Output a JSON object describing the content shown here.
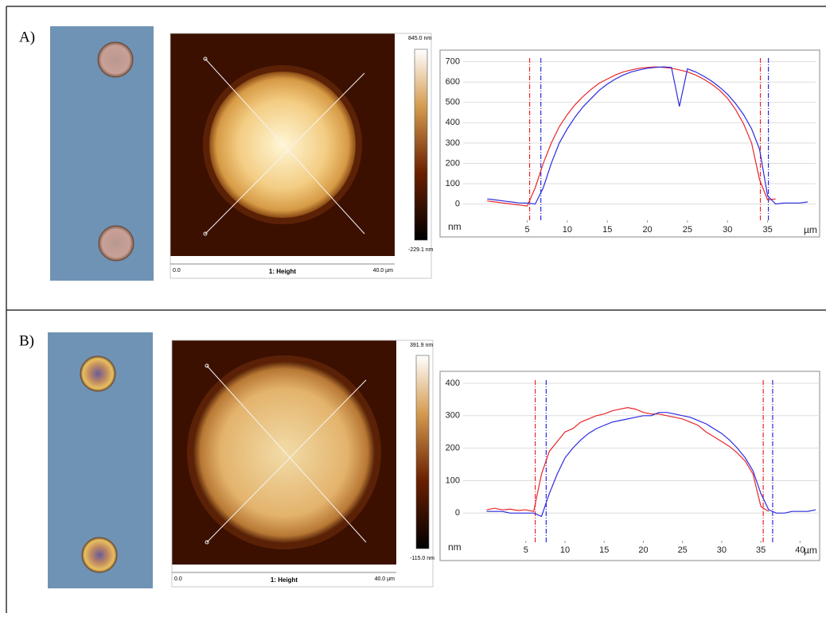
{
  "panels": [
    {
      "label": "A)",
      "afm": {
        "scale_max": "845.0 nm",
        "scale_min": "-229.1 nm",
        "axis_start": "0.0",
        "axis_title": "1: Height",
        "axis_end": "40.0 µm"
      }
    },
    {
      "label": "B)",
      "afm": {
        "scale_max": "391.9 nm",
        "scale_min": "-115.0 nm",
        "axis_start": "0.0",
        "axis_title": "1: Height",
        "axis_end": "40.0 µm"
      }
    }
  ],
  "chart_data": [
    {
      "type": "line",
      "y_label": "nm",
      "x_label": "µm",
      "x": [
        0,
        1,
        2,
        3,
        4,
        5,
        6,
        7,
        8,
        9,
        10,
        11,
        12,
        13,
        14,
        15,
        16,
        17,
        18,
        19,
        20,
        21,
        22,
        23,
        24,
        25,
        26,
        27,
        28,
        29,
        30,
        31,
        32,
        33,
        34,
        35,
        36,
        37,
        38,
        39,
        40
      ],
      "series": [
        {
          "color": "#e8262a",
          "values": [
            15,
            10,
            5,
            0,
            -5,
            -10,
            80,
            200,
            300,
            380,
            440,
            490,
            530,
            565,
            595,
            615,
            635,
            650,
            660,
            668,
            672,
            675,
            672,
            668,
            660,
            650,
            635,
            615,
            590,
            560,
            520,
            465,
            395,
            300,
            120,
            20,
            25,
            null,
            null,
            null,
            null
          ]
        },
        {
          "color": "#2b2be0",
          "values": [
            25,
            20,
            15,
            10,
            5,
            5,
            0,
            80,
            200,
            300,
            370,
            430,
            480,
            520,
            560,
            590,
            615,
            635,
            650,
            660,
            668,
            672,
            675,
            672,
            480,
            665,
            650,
            630,
            605,
            575,
            540,
            495,
            440,
            370,
            270,
            40,
            0,
            5,
            5,
            5,
            10
          ]
        }
      ],
      "cursors": [
        {
          "x": 5.3,
          "color": "#e8262a"
        },
        {
          "x": 6.7,
          "color": "#2b2be0"
        },
        {
          "x": 34.1,
          "color": "#e8262a"
        },
        {
          "x": 35.1,
          "color": "#2b2be0"
        }
      ],
      "xlim": [
        -3,
        41
      ],
      "ylim": [
        -80,
        730
      ],
      "xticks": [
        5,
        10,
        15,
        20,
        25,
        30,
        35
      ],
      "yticks": [
        0,
        100,
        200,
        300,
        400,
        500,
        600,
        700
      ],
      "grid": true
    },
    {
      "type": "line",
      "y_label": "nm",
      "x_label": "µm",
      "x": [
        0,
        1,
        2,
        3,
        4,
        5,
        6,
        7,
        8,
        9,
        10,
        11,
        12,
        13,
        14,
        15,
        16,
        17,
        18,
        19,
        20,
        21,
        22,
        23,
        24,
        25,
        26,
        27,
        28,
        29,
        30,
        31,
        32,
        33,
        34,
        35,
        36,
        37,
        38,
        39,
        40,
        41,
        42
      ],
      "series": [
        {
          "color": "#e8262a",
          "values": [
            10,
            15,
            10,
            12,
            8,
            10,
            5,
            120,
            190,
            220,
            250,
            260,
            280,
            290,
            300,
            305,
            315,
            320,
            325,
            320,
            310,
            305,
            305,
            300,
            295,
            290,
            280,
            270,
            250,
            235,
            220,
            205,
            185,
            160,
            120,
            20,
            5,
            null,
            null,
            null,
            null,
            null,
            null
          ]
        },
        {
          "color": "#2b2be0",
          "values": [
            5,
            5,
            5,
            0,
            0,
            0,
            0,
            -10,
            60,
            120,
            170,
            200,
            225,
            245,
            260,
            270,
            280,
            285,
            290,
            295,
            300,
            300,
            310,
            310,
            305,
            300,
            295,
            285,
            275,
            260,
            245,
            225,
            200,
            170,
            130,
            60,
            10,
            0,
            0,
            5,
            5,
            5,
            10
          ]
        }
      ],
      "cursors": [
        {
          "x": 6.2,
          "color": "#e8262a"
        },
        {
          "x": 7.6,
          "color": "#2b2be0"
        },
        {
          "x": 35.3,
          "color": "#e8262a"
        },
        {
          "x": 36.5,
          "color": "#2b2be0"
        }
      ],
      "xlim": [
        -3,
        42.5
      ],
      "ylim": [
        -85,
        417
      ],
      "xticks": [
        5,
        10,
        15,
        20,
        25,
        30,
        35,
        40
      ],
      "yticks": [
        0,
        100,
        200,
        300,
        400
      ],
      "grid": true
    }
  ]
}
